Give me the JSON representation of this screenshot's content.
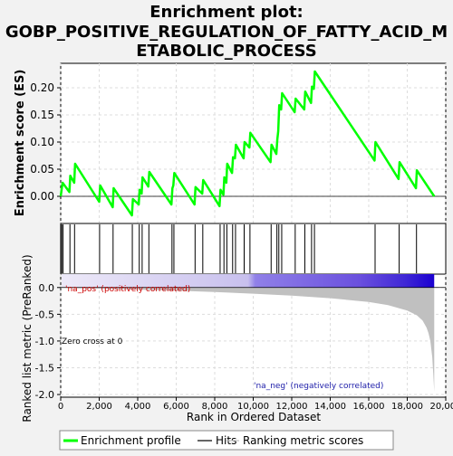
{
  "chart_data": {
    "type": "line",
    "title_line1": "Enrichment plot:",
    "title_line2": "GOBP_POSITIVE_REGULATION_OF_FATTY_ACID_M",
    "title_line3": "ETABOLIC_PROCESS",
    "xlabel": "Rank in Ordered Dataset",
    "es_ylabel": "Enrichment score (ES)",
    "metric_ylabel": "Ranked list metric (PreRanked)",
    "xlim": [
      0,
      20000
    ],
    "es_ylim": [
      -0.05,
      0.245
    ],
    "metric_ylim": [
      -2.05,
      0.25
    ],
    "x_ticks": [
      0,
      2000,
      4000,
      6000,
      8000,
      10000,
      12000,
      14000,
      16000,
      18000,
      20000
    ],
    "x_tick_labels": [
      "0",
      "2,000",
      "4,000",
      "6,000",
      "8,000",
      "10,000",
      "12,000",
      "14,000",
      "16,000",
      "18,000",
      "20,000"
    ],
    "es_ticks": [
      0.0,
      0.05,
      0.1,
      0.15,
      0.2
    ],
    "es_tick_labels": [
      "0.00",
      "0.05",
      "0.10",
      "0.15",
      "0.20"
    ],
    "metric_ticks": [
      0.0,
      -0.5,
      -1.0,
      -1.5,
      -2.0
    ],
    "metric_tick_labels": [
      "0.0",
      "-0.5",
      "-1.0",
      "-1.5",
      "-2.0"
    ],
    "annotations": {
      "pos": "'na_pos' (positively correlated)",
      "neg": "'na_neg' (negatively correlated)",
      "zero": "Zero cross at 0"
    },
    "legend": [
      {
        "label": "Enrichment profile",
        "color": "#00ff00"
      },
      {
        "label": "Hits",
        "color": "#000000"
      },
      {
        "label": "Ranking metric scores",
        "color": "#c0c0c0"
      }
    ],
    "colors": {
      "es_line": "#00ff00",
      "hits": "#000000",
      "metric_fill": "#c0c0c0",
      "pos_text": "#cc0000",
      "neg_text": "#2020aa",
      "bar_low": "#ded8f2",
      "bar_high": "#1a00d0"
    },
    "series": [
      {
        "name": "Enrichment profile",
        "x": [
          0,
          100,
          450,
          500,
          700,
          750,
          2000,
          2050,
          2700,
          2750,
          3700,
          3750,
          4050,
          4100,
          4200,
          4250,
          4550,
          4600,
          5750,
          5800,
          5850,
          5900,
          6950,
          7000,
          7350,
          7400,
          8250,
          8300,
          8450,
          8500,
          8600,
          8650,
          8900,
          8950,
          9050,
          9100,
          9500,
          9550,
          9800,
          9850,
          10900,
          10950,
          11200,
          11250,
          11300,
          11350,
          11450,
          11500,
          12150,
          12200,
          12650,
          12700,
          13000,
          13050,
          13150,
          13200,
          16300,
          16350,
          17550,
          17600,
          18450,
          18500,
          19400
        ],
        "y": [
          0.0,
          0.025,
          0.008,
          0.038,
          0.025,
          0.06,
          -0.01,
          0.02,
          -0.02,
          0.015,
          -0.035,
          -0.005,
          -0.015,
          0.012,
          0.005,
          0.035,
          0.018,
          0.045,
          -0.015,
          0.015,
          0.02,
          0.043,
          -0.015,
          0.017,
          0.005,
          0.03,
          -0.018,
          0.012,
          0.003,
          0.035,
          0.025,
          0.06,
          0.043,
          0.072,
          0.07,
          0.095,
          0.07,
          0.1,
          0.09,
          0.117,
          0.063,
          0.095,
          0.078,
          0.105,
          0.12,
          0.168,
          0.16,
          0.19,
          0.155,
          0.18,
          0.16,
          0.193,
          0.172,
          0.202,
          0.198,
          0.23,
          0.066,
          0.1,
          0.032,
          0.063,
          0.015,
          0.048,
          0.0
        ]
      }
    ],
    "hits": [
      50,
      120,
      480,
      720,
      2020,
      2720,
      3720,
      4080,
      4230,
      4580,
      5780,
      5880,
      6980,
      7380,
      8280,
      8480,
      8630,
      8930,
      9080,
      9530,
      9830,
      10930,
      11230,
      11330,
      11480,
      12180,
      12680,
      13030,
      13180,
      16330,
      17580,
      18480
    ],
    "metric": {
      "x": [
        0,
        2000,
        4000,
        6000,
        8000,
        10000,
        12000,
        14000,
        16000,
        17000,
        18000,
        18500,
        18800,
        19000,
        19100,
        19200,
        19300,
        19350,
        19400
      ],
      "y": [
        -0.005,
        -0.02,
        -0.04,
        -0.06,
        -0.085,
        -0.115,
        -0.15,
        -0.2,
        -0.27,
        -0.33,
        -0.43,
        -0.52,
        -0.62,
        -0.75,
        -0.85,
        -1.0,
        -1.3,
        -1.6,
        -1.95
      ]
    }
  }
}
